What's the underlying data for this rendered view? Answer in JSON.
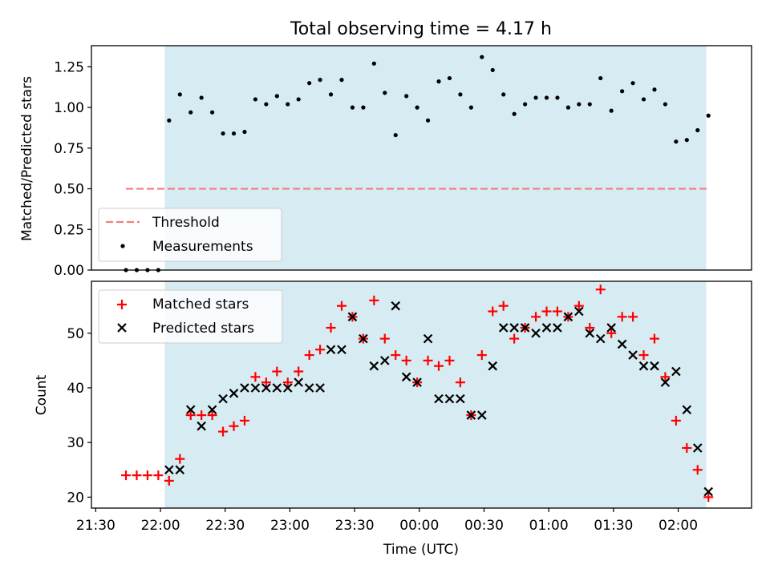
{
  "chart_data": [
    {
      "type": "scatter",
      "title": "Total observing time = 4.17 h",
      "ylabel": "Matched/Predicted stars",
      "ylim": [
        0,
        1.38
      ],
      "yticks": [
        "0.00",
        "0.25",
        "0.50",
        "0.75",
        "1.00",
        "1.25"
      ],
      "shaded_span": [
        "22:02",
        "02:13"
      ],
      "threshold": {
        "name": "Threshold",
        "value": 0.5,
        "color": "#f08080",
        "style": "dashed"
      },
      "legend": {
        "placement": "lower-left",
        "entries": [
          "Threshold",
          "Measurements"
        ]
      },
      "series": [
        {
          "name": "Measurements",
          "marker": "dot",
          "color": "#000000",
          "x": [
            "21:44",
            "21:49",
            "21:54",
            "21:59",
            "22:04",
            "22:09",
            "22:14",
            "22:19",
            "22:24",
            "22:29",
            "22:34",
            "22:39",
            "22:44",
            "22:49",
            "22:54",
            "22:59",
            "23:04",
            "23:09",
            "23:14",
            "23:19",
            "23:24",
            "23:29",
            "23:34",
            "23:39",
            "23:44",
            "23:49",
            "23:54",
            "23:59",
            "00:04",
            "00:09",
            "00:14",
            "00:19",
            "00:24",
            "00:29",
            "00:34",
            "00:39",
            "00:44",
            "00:49",
            "00:54",
            "00:59",
            "01:04",
            "01:09",
            "01:14",
            "01:19",
            "01:24",
            "01:29",
            "01:34",
            "01:39",
            "01:44",
            "01:49",
            "01:54",
            "01:59",
            "02:04",
            "02:09",
            "02:14"
          ],
          "y": [
            0.0,
            0.0,
            0.0,
            0.0,
            0.92,
            1.08,
            0.97,
            1.06,
            0.97,
            0.84,
            0.84,
            0.85,
            1.05,
            1.02,
            1.07,
            1.02,
            1.05,
            1.15,
            1.17,
            1.08,
            1.17,
            1.0,
            1.0,
            1.27,
            1.09,
            0.83,
            1.07,
            1.0,
            0.92,
            1.16,
            1.18,
            1.08,
            1.0,
            1.31,
            1.23,
            1.08,
            0.96,
            1.02,
            1.06,
            1.06,
            1.06,
            1.0,
            1.02,
            1.02,
            1.18,
            0.98,
            1.1,
            1.15,
            1.05,
            1.11,
            1.02,
            0.79,
            0.8,
            0.86,
            0.95
          ]
        }
      ]
    },
    {
      "type": "scatter",
      "ylabel": "Count",
      "xlabel": "Time (UTC)",
      "ylim": [
        18,
        59.5
      ],
      "yticks": [
        "20",
        "30",
        "40",
        "50"
      ],
      "xticks": [
        "21:30",
        "22:00",
        "22:30",
        "23:00",
        "23:30",
        "00:00",
        "00:30",
        "01:00",
        "01:30",
        "02:00"
      ],
      "shaded_span": [
        "22:02",
        "02:13"
      ],
      "legend": {
        "placement": "top-left",
        "entries": [
          "Matched stars",
          "Predicted stars"
        ]
      },
      "series": [
        {
          "name": "Matched stars",
          "marker": "plus",
          "color": "#ff0000",
          "x": [
            "21:44",
            "21:49",
            "21:54",
            "21:59",
            "22:04",
            "22:09",
            "22:14",
            "22:19",
            "22:24",
            "22:29",
            "22:34",
            "22:39",
            "22:44",
            "22:49",
            "22:54",
            "22:59",
            "23:04",
            "23:09",
            "23:14",
            "23:19",
            "23:24",
            "23:29",
            "23:34",
            "23:39",
            "23:44",
            "23:49",
            "23:54",
            "23:59",
            "00:04",
            "00:09",
            "00:14",
            "00:19",
            "00:24",
            "00:29",
            "00:34",
            "00:39",
            "00:44",
            "00:49",
            "00:54",
            "00:59",
            "01:04",
            "01:09",
            "01:14",
            "01:19",
            "01:24",
            "01:29",
            "01:34",
            "01:39",
            "01:44",
            "01:49",
            "01:54",
            "01:59",
            "02:04",
            "02:09",
            "02:14"
          ],
          "y": [
            24,
            24,
            24,
            24,
            23,
            27,
            35,
            35,
            35,
            32,
            33,
            34,
            42,
            41,
            43,
            41,
            43,
            46,
            47,
            51,
            55,
            53,
            49,
            56,
            49,
            46,
            45,
            41,
            45,
            44,
            45,
            41,
            35,
            46,
            54,
            55,
            49,
            51,
            53,
            54,
            54,
            53,
            55,
            51,
            58,
            50,
            53,
            53,
            46,
            49,
            42,
            34,
            29,
            25,
            20
          ]
        },
        {
          "name": "Predicted stars",
          "marker": "x",
          "color": "#000000",
          "x": [
            "22:04",
            "22:09",
            "22:14",
            "22:19",
            "22:24",
            "22:29",
            "22:34",
            "22:39",
            "22:44",
            "22:49",
            "22:54",
            "22:59",
            "23:04",
            "23:09",
            "23:14",
            "23:19",
            "23:24",
            "23:29",
            "23:34",
            "23:39",
            "23:44",
            "23:49",
            "23:54",
            "23:59",
            "00:04",
            "00:09",
            "00:14",
            "00:19",
            "00:24",
            "00:29",
            "00:34",
            "00:39",
            "00:44",
            "00:49",
            "00:54",
            "00:59",
            "01:04",
            "01:09",
            "01:14",
            "01:19",
            "01:24",
            "01:29",
            "01:34",
            "01:39",
            "01:44",
            "01:49",
            "01:54",
            "01:59",
            "02:04",
            "02:09",
            "02:14"
          ],
          "y": [
            25,
            25,
            36,
            33,
            36,
            38,
            39,
            40,
            40,
            40,
            40,
            40,
            41,
            40,
            40,
            47,
            47,
            53,
            49,
            44,
            45,
            55,
            42,
            41,
            49,
            38,
            38,
            38,
            35,
            35,
            44,
            51,
            51,
            51,
            50,
            51,
            51,
            53,
            54,
            50,
            49,
            51,
            48,
            46,
            44,
            44,
            41,
            43,
            36,
            29,
            21
          ]
        }
      ]
    }
  ]
}
